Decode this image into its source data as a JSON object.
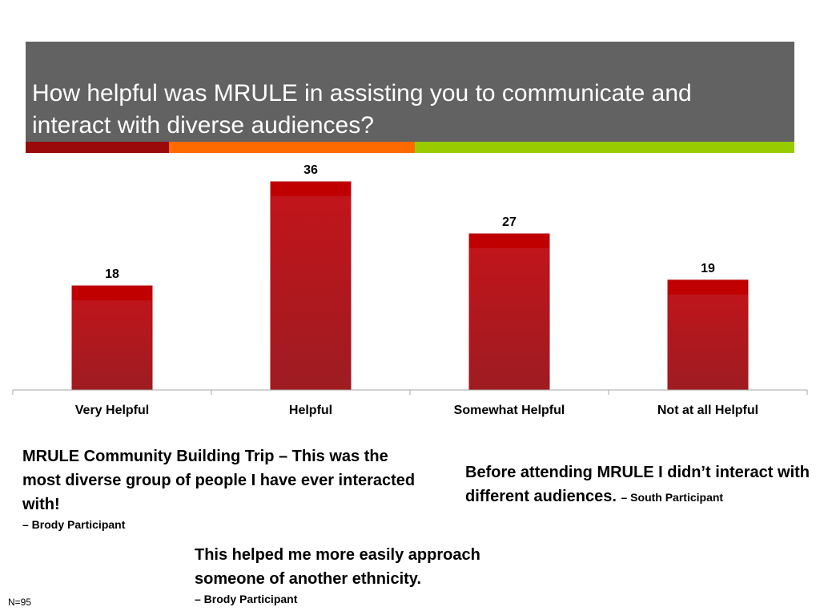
{
  "slide": {
    "title": "How helpful was MRULE in assisting you to communicate and interact with diverse audiences?",
    "accent_colors": [
      "#9b0a0a",
      "#ff6a00",
      "#99cc00"
    ],
    "sample_note": "N=95"
  },
  "chart_data": {
    "type": "bar",
    "categories": [
      "Very Helpful",
      "Helpful",
      "Somewhat Helpful",
      "Not at all Helpful"
    ],
    "values": [
      18,
      36,
      27,
      19
    ],
    "title": "",
    "xlabel": "",
    "ylabel": "",
    "ylim": [
      0,
      40
    ],
    "grid": false,
    "legend": "none",
    "bar_color": "#b5161a",
    "bar_top_color": "#c00000"
  },
  "quotes": [
    {
      "text": "MRULE Community Building Trip – This was the most diverse group of people I have ever interacted with!",
      "attribution": "– Brody Participant"
    },
    {
      "text": "Before attending MRULE I didn’t interact with different audiences.",
      "attribution": "– South Participant"
    },
    {
      "text": "This helped me more easily approach someone of another ethnicity.",
      "attribution": "– Brody Participant"
    }
  ]
}
